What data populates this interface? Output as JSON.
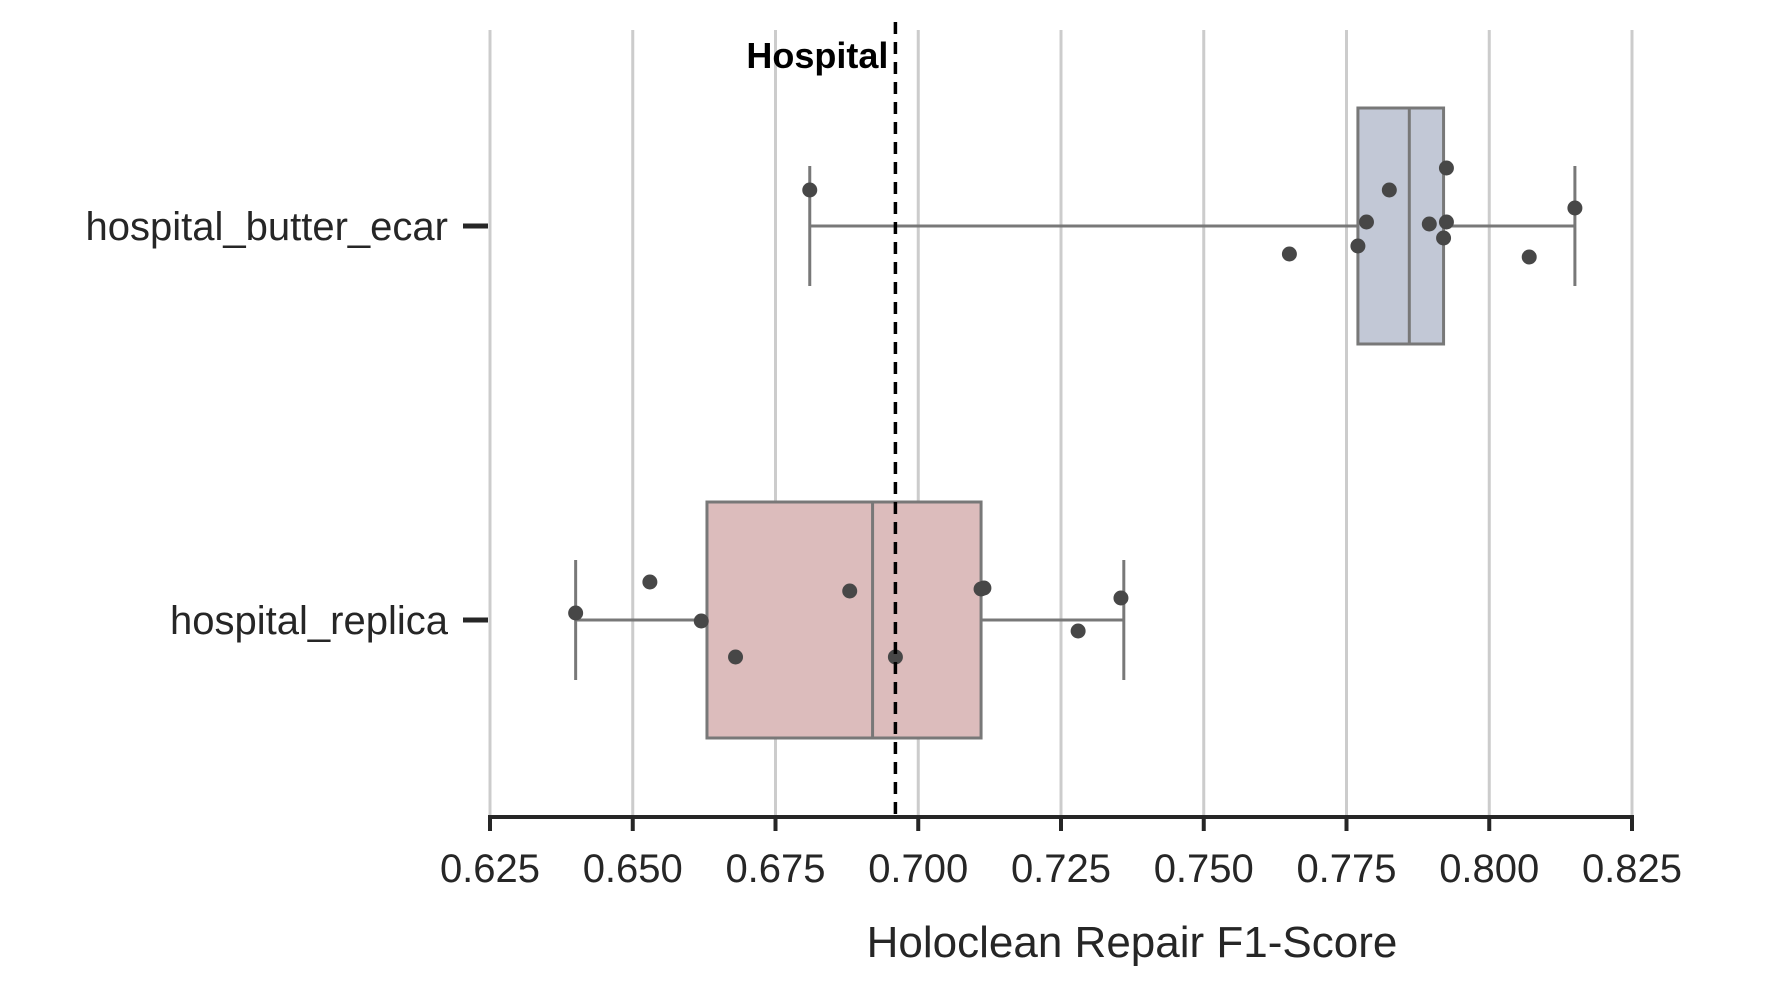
{
  "chart_data": {
    "type": "box",
    "orientation": "horizontal",
    "xlabel": "Holoclean Repair F1-Score",
    "xlim": [
      0.625,
      0.825
    ],
    "xticks": [
      "0.625",
      "0.650",
      "0.675",
      "0.700",
      "0.725",
      "0.750",
      "0.775",
      "0.800",
      "0.825"
    ],
    "grid": "vertical",
    "reference_line": {
      "label": "Hospital",
      "x": 0.696,
      "style": "dashed",
      "color": "#000000"
    },
    "series": [
      {
        "name": "hospital_butter_ecar",
        "color": "#c2c8d6",
        "box": {
          "whisker_low": 0.681,
          "q1": 0.777,
          "median": 0.786,
          "q3": 0.792,
          "whisker_high": 0.815
        },
        "points": [
          0.681,
          0.7825,
          0.7785,
          0.7895,
          0.7925,
          0.792,
          0.7925,
          0.765,
          0.777,
          0.807,
          0.815
        ]
      },
      {
        "name": "hospital_replica",
        "color": "#dcbcbc",
        "box": {
          "whisker_low": 0.64,
          "q1": 0.663,
          "median": 0.692,
          "q3": 0.711,
          "whisker_high": 0.736
        },
        "points": [
          0.64,
          0.653,
          0.662,
          0.668,
          0.688,
          0.696,
          0.711,
          0.7115,
          0.728,
          0.7355
        ]
      }
    ]
  }
}
